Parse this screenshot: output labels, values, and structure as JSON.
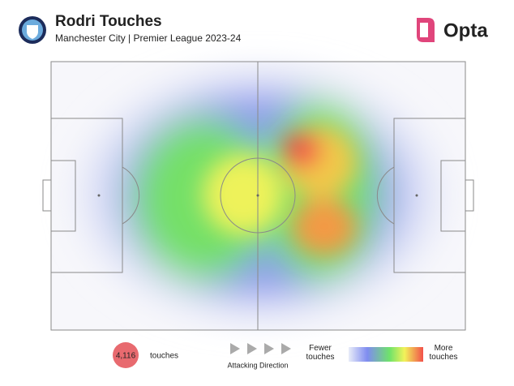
{
  "header": {
    "title": "Rodri Touches",
    "subtitle": "Manchester City | Premier League 2023-24",
    "brand": "Opta"
  },
  "footer": {
    "count": "4,116",
    "count_label": "touches",
    "direction": "Attacking Direction",
    "legend_low": "Fewer touches",
    "legend_high": "More touches"
  }
}
